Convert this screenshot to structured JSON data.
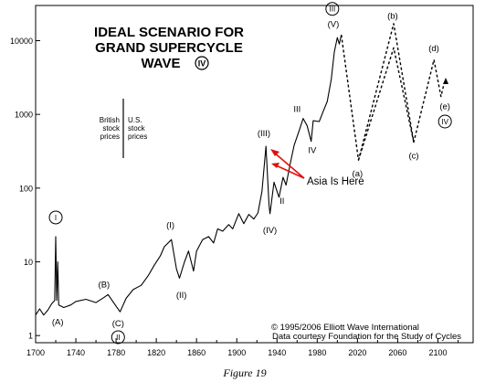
{
  "chart_data": {
    "type": "line",
    "title_lines": [
      "IDEAL SCENARIO FOR",
      "GRAND SUPERCYCLE",
      "WAVE"
    ],
    "title_wave_numeral": "IV",
    "yscale": "log",
    "ylim": [
      0.8,
      30000
    ],
    "xlim": [
      1700,
      2135
    ],
    "y_ticks": [
      {
        "value": 1,
        "label": "1"
      },
      {
        "value": 10,
        "label": "10"
      },
      {
        "value": 100,
        "label": "100"
      },
      {
        "value": 1000,
        "label": "1000"
      },
      {
        "value": 10000,
        "label": "10000"
      }
    ],
    "x_ticks": [
      {
        "value": 1700,
        "label": "1700"
      },
      {
        "value": 1740,
        "label": "1740"
      },
      {
        "value": 1780,
        "label": "1780"
      },
      {
        "value": 1820,
        "label": "1820"
      },
      {
        "value": 1860,
        "label": "1860"
      },
      {
        "value": 1900,
        "label": "1900"
      },
      {
        "value": 1940,
        "label": "1940"
      },
      {
        "value": 1980,
        "label": "1980"
      },
      {
        "value": 2020,
        "label": "2020"
      },
      {
        "value": 2060,
        "label": "2060"
      },
      {
        "value": 2100,
        "label": "2100"
      }
    ],
    "series": [
      {
        "style": "solid",
        "points": [
          [
            1700,
            1.9
          ],
          [
            1704,
            2.3
          ],
          [
            1708,
            1.9
          ],
          [
            1712,
            2.2
          ],
          [
            1716,
            2.7
          ],
          [
            1719,
            3.0
          ],
          [
            1720,
            22
          ],
          [
            1721,
            3.0
          ],
          [
            1722,
            10
          ],
          [
            1723,
            2.6
          ],
          [
            1728,
            2.4
          ],
          [
            1735,
            2.6
          ],
          [
            1740,
            2.9
          ],
          [
            1750,
            3.1
          ],
          [
            1760,
            2.8
          ],
          [
            1768,
            3.3
          ],
          [
            1772,
            3.6
          ],
          [
            1780,
            2.5
          ],
          [
            1784,
            2.1
          ],
          [
            1790,
            3.2
          ],
          [
            1797,
            4.2
          ],
          [
            1805,
            4.8
          ],
          [
            1812,
            6.5
          ],
          [
            1818,
            9.0
          ],
          [
            1824,
            12
          ],
          [
            1828,
            16
          ],
          [
            1835,
            20
          ],
          [
            1840,
            8.0
          ],
          [
            1843,
            6.0
          ],
          [
            1848,
            10
          ],
          [
            1852,
            14
          ],
          [
            1857,
            7.5
          ],
          [
            1860,
            14
          ],
          [
            1866,
            20
          ],
          [
            1872,
            22
          ],
          [
            1877,
            18
          ],
          [
            1881,
            28
          ],
          [
            1886,
            26
          ],
          [
            1892,
            32
          ],
          [
            1896,
            28
          ],
          [
            1902,
            45
          ],
          [
            1907,
            33
          ],
          [
            1912,
            44
          ],
          [
            1917,
            38
          ],
          [
            1921,
            46
          ],
          [
            1925,
            90
          ],
          [
            1929,
            370
          ],
          [
            1932,
            60
          ],
          [
            1933,
            45
          ],
          [
            1937,
            120
          ],
          [
            1942,
            75
          ],
          [
            1946,
            140
          ],
          [
            1949,
            110
          ],
          [
            1953,
            210
          ],
          [
            1957,
            380
          ],
          [
            1962,
            600
          ],
          [
            1966,
            880
          ],
          [
            1970,
            700
          ],
          [
            1974,
            430
          ],
          [
            1976,
            820
          ],
          [
            1982,
            800
          ],
          [
            1986,
            1100
          ],
          [
            1990,
            1500
          ],
          [
            1994,
            3000
          ],
          [
            1997,
            7000
          ],
          [
            2000,
            11000
          ],
          [
            2002,
            9000
          ],
          [
            2004,
            12000
          ]
        ]
      },
      {
        "style": "dashed",
        "points": [
          [
            2004,
            12000
          ],
          [
            2021,
            240
          ],
          [
            2056,
            17000
          ],
          [
            2076,
            420
          ],
          [
            2096,
            5500
          ],
          [
            2103,
            1750
          ],
          [
            2106,
            2600
          ]
        ]
      },
      {
        "style": "dashed",
        "points": [
          [
            2021,
            240
          ],
          [
            2056,
            8000
          ],
          [
            2076,
            420
          ]
        ]
      }
    ],
    "wave_labels": [
      {
        "text": "I",
        "x": 1720,
        "y": 40,
        "circled": true
      },
      {
        "text": "(A)",
        "x": 1722,
        "y": 1.55
      },
      {
        "text": "(B)",
        "x": 1768,
        "y": 5.0
      },
      {
        "text": "(C)",
        "x": 1782,
        "y": 1.48
      },
      {
        "text": "II",
        "x": 1782,
        "y": 0.95,
        "circled": true
      },
      {
        "text": "(I)",
        "x": 1834,
        "y": 32
      },
      {
        "text": "(II)",
        "x": 1845,
        "y": 3.6
      },
      {
        "text": "(III)",
        "x": 1927,
        "y": 560
      },
      {
        "text": "(IV)",
        "x": 1933,
        "y": 27
      },
      {
        "text": "II",
        "x": 1945,
        "y": 68
      },
      {
        "text": "III",
        "x": 1960,
        "y": 1200
      },
      {
        "text": "IV",
        "x": 1975,
        "y": 330
      },
      {
        "text": "(V)",
        "x": 1996,
        "y": 17000
      },
      {
        "text": "III",
        "x": 1995,
        "y": 27000,
        "circled": true
      },
      {
        "text": "(a)",
        "x": 2020,
        "y": 160
      },
      {
        "text": "(b)",
        "x": 2055,
        "y": 22000
      },
      {
        "text": "(c)",
        "x": 2076,
        "y": 280
      },
      {
        "text": "(d)",
        "x": 2096,
        "y": 8000
      },
      {
        "text": "(e)",
        "x": 2107,
        "y": 1300
      },
      {
        "text": "IV",
        "x": 2107,
        "y": 800,
        "circled": true
      }
    ],
    "annotations": {
      "british_label": [
        "British",
        "stock",
        "prices"
      ],
      "us_label": [
        "U.S.",
        "stock",
        "prices"
      ],
      "asia_text": "Asia Is Here",
      "copyright_line1": "© 1995/2006 Elliott Wave International",
      "copyright_line2": "Data courtesy Foundation for the Study of Cycles"
    },
    "caption": "Figure 19",
    "colors": {
      "line": "#000000",
      "arrow": "#e01010",
      "background": "#ffffff"
    }
  }
}
